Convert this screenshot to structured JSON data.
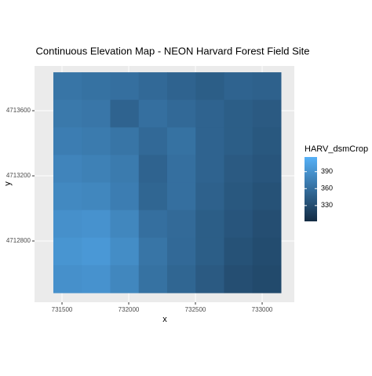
{
  "chart_data": {
    "type": "raster",
    "title": "Continuous Elevation Map - NEON Harvard Forest Field Site",
    "x_label": "x",
    "y_label": "y",
    "xlim": [
      731294,
      733241
    ],
    "ylim": [
      4712424,
      4713875
    ],
    "xticks": [
      731500,
      732000,
      732500,
      733000
    ],
    "yticks": [
      4712800,
      4713200,
      4713600
    ],
    "extent_x": [
      731435,
      733141
    ],
    "extent_y": [
      4712482,
      4713836
    ],
    "z": [
      [
        365,
        362,
        360,
        355,
        350,
        345,
        350,
        348
      ],
      [
        368,
        366,
        350,
        360,
        355,
        350,
        345,
        342
      ],
      [
        372,
        370,
        365,
        355,
        362,
        350,
        345,
        340
      ],
      [
        378,
        375,
        370,
        350,
        360,
        350,
        342,
        338
      ],
      [
        382,
        380,
        372,
        352,
        360,
        348,
        340,
        335
      ],
      [
        388,
        390,
        380,
        360,
        356,
        345,
        338,
        332
      ],
      [
        392,
        395,
        385,
        365,
        355,
        345,
        335,
        330
      ],
      [
        388,
        390,
        380,
        362,
        352,
        342,
        332,
        328
      ]
    ],
    "legend_title": "HARV_dsmCrop",
    "legend_lim": [
      302,
      416
    ],
    "legend_ticks": [
      330,
      360,
      390
    ],
    "low_color": "#132B43",
    "high_color": "#56B1F7",
    "panel_color": "#ebebeb",
    "grid": true
  }
}
